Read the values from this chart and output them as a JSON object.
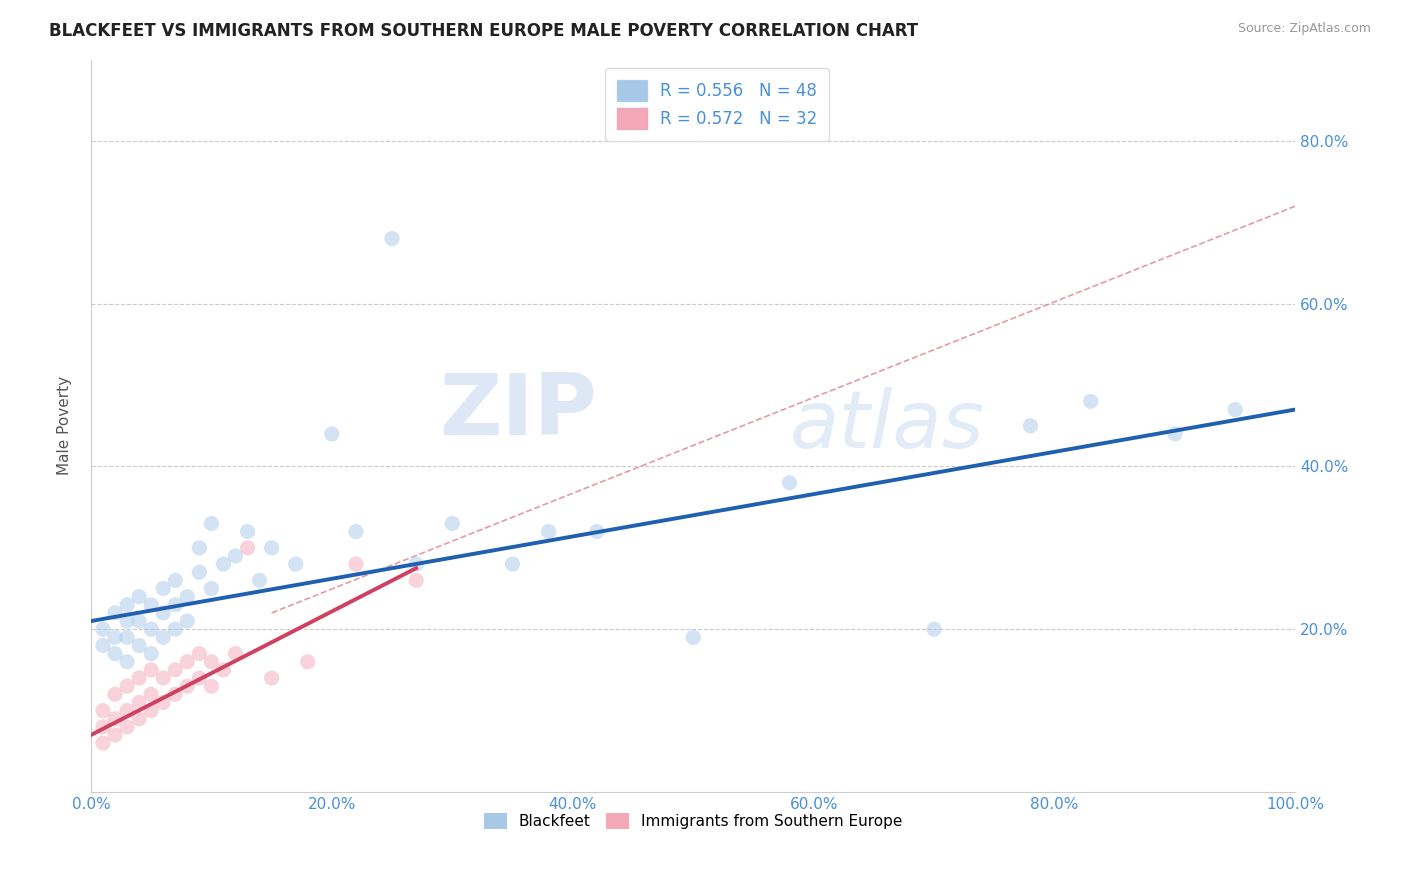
{
  "title": "BLACKFEET VS IMMIGRANTS FROM SOUTHERN EUROPE MALE POVERTY CORRELATION CHART",
  "source": "Source: ZipAtlas.com",
  "ylabel": "Male Poverty",
  "xlim": [
    0.0,
    1.0
  ],
  "ylim": [
    0.0,
    0.9
  ],
  "xtick_labels": [
    "0.0%",
    "20.0%",
    "40.0%",
    "60.0%",
    "80.0%",
    "100.0%"
  ],
  "xtick_vals": [
    0.0,
    0.2,
    0.4,
    0.6,
    0.8,
    1.0
  ],
  "ytick_labels": [
    "20.0%",
    "40.0%",
    "60.0%",
    "80.0%"
  ],
  "ytick_vals": [
    0.2,
    0.4,
    0.6,
    0.8
  ],
  "legend1_label": "R = 0.556   N = 48",
  "legend2_label": "R = 0.572   N = 32",
  "legend_group1": "Blackfeet",
  "legend_group2": "Immigrants from Southern Europe",
  "color_blue": "#A8C8E8",
  "color_pink": "#F4A8B8",
  "line_color_blue": "#2060B0",
  "line_color_pink": "#D04060",
  "line_color_dashed": "#E08090",
  "background_color": "#FFFFFF",
  "watermark_zip": "ZIP",
  "watermark_atlas": "atlas",
  "title_fontsize": 12,
  "axis_label_fontsize": 11,
  "tick_fontsize": 11,
  "scatter_size": 120,
  "scatter_alpha": 0.5,
  "blue_x": [
    0.01,
    0.01,
    0.02,
    0.02,
    0.02,
    0.03,
    0.03,
    0.03,
    0.03,
    0.04,
    0.04,
    0.04,
    0.05,
    0.05,
    0.05,
    0.06,
    0.06,
    0.06,
    0.07,
    0.07,
    0.07,
    0.08,
    0.08,
    0.09,
    0.09,
    0.1,
    0.1,
    0.11,
    0.12,
    0.13,
    0.14,
    0.15,
    0.17,
    0.2,
    0.22,
    0.25,
    0.27,
    0.3,
    0.35,
    0.38,
    0.42,
    0.5,
    0.58,
    0.7,
    0.78,
    0.83,
    0.9,
    0.95
  ],
  "blue_y": [
    0.18,
    0.2,
    0.17,
    0.19,
    0.22,
    0.16,
    0.19,
    0.21,
    0.23,
    0.18,
    0.21,
    0.24,
    0.17,
    0.2,
    0.23,
    0.19,
    0.22,
    0.25,
    0.2,
    0.23,
    0.26,
    0.21,
    0.24,
    0.27,
    0.3,
    0.25,
    0.33,
    0.28,
    0.29,
    0.32,
    0.26,
    0.3,
    0.28,
    0.44,
    0.32,
    0.68,
    0.28,
    0.33,
    0.28,
    0.32,
    0.32,
    0.19,
    0.38,
    0.2,
    0.45,
    0.48,
    0.44,
    0.47
  ],
  "pink_x": [
    0.01,
    0.01,
    0.01,
    0.02,
    0.02,
    0.02,
    0.03,
    0.03,
    0.03,
    0.04,
    0.04,
    0.04,
    0.05,
    0.05,
    0.05,
    0.06,
    0.06,
    0.07,
    0.07,
    0.08,
    0.08,
    0.09,
    0.09,
    0.1,
    0.1,
    0.11,
    0.12,
    0.13,
    0.15,
    0.18,
    0.22,
    0.27
  ],
  "pink_y": [
    0.06,
    0.08,
    0.1,
    0.07,
    0.09,
    0.12,
    0.08,
    0.1,
    0.13,
    0.09,
    0.11,
    0.14,
    0.1,
    0.12,
    0.15,
    0.11,
    0.14,
    0.12,
    0.15,
    0.13,
    0.16,
    0.14,
    0.17,
    0.13,
    0.16,
    0.15,
    0.17,
    0.3,
    0.14,
    0.16,
    0.28,
    0.26
  ],
  "blue_line_x0": 0.0,
  "blue_line_x1": 1.0,
  "blue_line_y0": 0.21,
  "blue_line_y1": 0.47,
  "pink_line_x0": 0.0,
  "pink_line_x1": 0.27,
  "pink_line_y0": 0.07,
  "pink_line_y1": 0.275,
  "dash_line_x0": 0.15,
  "dash_line_x1": 1.0,
  "dash_line_y0": 0.22,
  "dash_line_y1": 0.72
}
